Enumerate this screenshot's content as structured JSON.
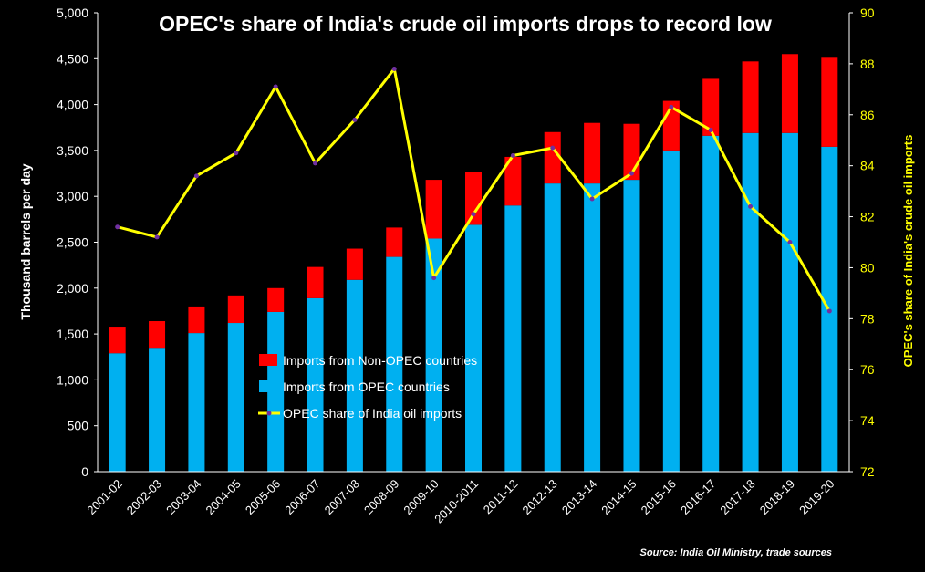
{
  "chart_data": {
    "type": "bar",
    "title": "OPEC's share of India's crude oil imports drops to record low",
    "source": "Source: India Oil Ministry, trade sources",
    "ylabel_left": "Thousand barrels per day",
    "ylabel_right": "OPEC's share of India's crude oil imports",
    "ylim_left": [
      0,
      5000
    ],
    "ylim_right": [
      72,
      90
    ],
    "yticks_left": [
      "0",
      "500",
      "1,000",
      "1,500",
      "2,000",
      "2,500",
      "3,000",
      "3,500",
      "4,000",
      "4,500",
      "5,000"
    ],
    "yticks_right": [
      "72",
      "74",
      "76",
      "78",
      "80",
      "82",
      "84",
      "86",
      "88",
      "90"
    ],
    "categories": [
      "2001-02",
      "2002-03",
      "2003-04",
      "2004-05",
      "2005-06",
      "2006-07",
      "2007-08",
      "2008-09",
      "2009-10",
      "2010-2011",
      "2011-12",
      "2012-13",
      "2013-14",
      "2014-15",
      "2015-16",
      "2016-17",
      "2017-18",
      "2018-19",
      "2019-20"
    ],
    "series": [
      {
        "name": "Imports from OPEC countries",
        "type": "bar-stacked",
        "color": "#00b0f0",
        "values": [
          1290,
          1340,
          1510,
          1620,
          1740,
          1890,
          2090,
          2340,
          2540,
          2690,
          2900,
          3140,
          3140,
          3180,
          3500,
          3660,
          3690,
          3690,
          3540
        ]
      },
      {
        "name": "Imports from Non-OPEC countries",
        "type": "bar-stacked",
        "color": "#ff0000",
        "values": [
          290,
          300,
          290,
          300,
          260,
          340,
          340,
          320,
          640,
          580,
          530,
          560,
          660,
          610,
          540,
          620,
          780,
          860,
          970
        ]
      },
      {
        "name": "OPEC share of India oil imports",
        "type": "line",
        "axis": "right",
        "color": "#ffff00",
        "values": [
          81.6,
          81.2,
          83.6,
          84.5,
          87.1,
          84.1,
          85.8,
          87.8,
          79.6,
          82.1,
          84.4,
          84.7,
          82.7,
          83.7,
          86.3,
          85.4,
          82.4,
          81.0,
          78.3
        ]
      }
    ],
    "legend_position": "center-left"
  }
}
